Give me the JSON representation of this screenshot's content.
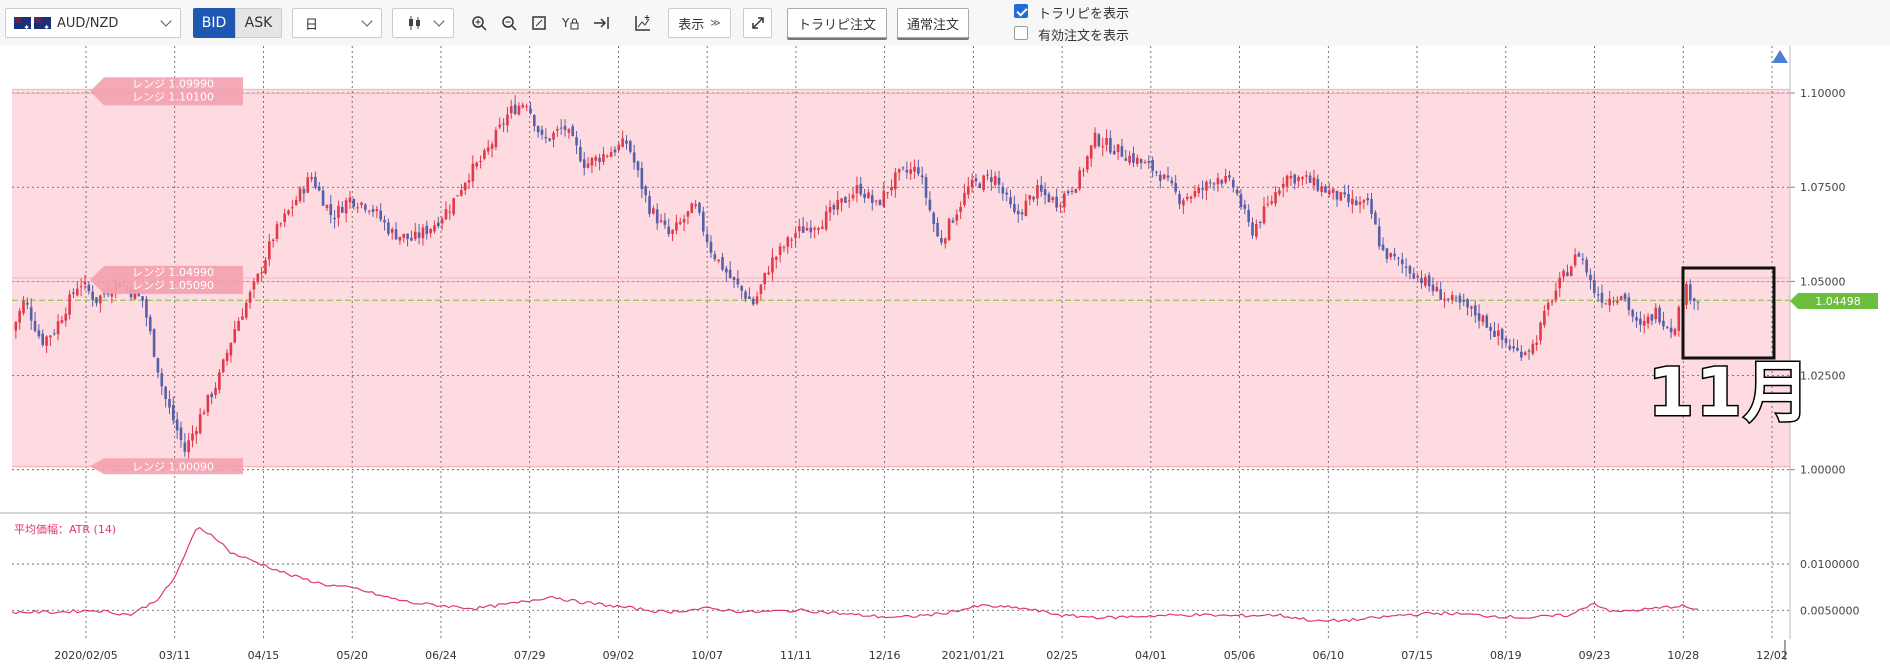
{
  "toolbar": {
    "symbol": "AUD/NZD",
    "bid_label": "BID",
    "ask_label": "ASK",
    "period": "日",
    "display_button": "表示",
    "tp_order_button": "トラリピ注文",
    "normal_order_button": "通常注文",
    "show_traripi_label": "トラリピを表示",
    "show_traripi_checked": true,
    "show_valid_orders_label": "有効注文を表示",
    "show_valid_orders_checked": false
  },
  "annotation": "11月",
  "colors": {
    "range_zone": "#fedbe1",
    "up_candle": "#e0394a",
    "down_candle": "#5560a8",
    "atr_line": "#e0357a",
    "price_badge": "#6cbf3c",
    "current_line": "#7cbf3c"
  },
  "chart_data": [
    {
      "type": "candlestick",
      "symbol": "AUD/NZD",
      "y_ticks": [
        "1.10000",
        "1.07500",
        "1.05000",
        "1.02500",
        "1.00000"
      ],
      "ylim": [
        0.9885,
        1.1125
      ],
      "x_ticks": [
        "2020/02/05",
        "03/11",
        "04/15",
        "05/20",
        "06/24",
        "07/29",
        "09/02",
        "10/07",
        "11/11",
        "12/16",
        "2021/01/21",
        "02/25",
        "04/01",
        "05/06",
        "06/10",
        "07/15",
        "08/19",
        "09/23",
        "10/28",
        "12/02"
      ],
      "current_price": "1.04498",
      "current_value": 1.04498,
      "range_zone": {
        "low": 1.0005,
        "high": 1.101
      },
      "range_labels": [
        {
          "text": "レンジ 1.09990",
          "value": 1.0999
        },
        {
          "text": "レンジ 1.10100",
          "value": 1.101
        },
        {
          "text": "レンジ 1.04990",
          "value": 1.0499
        },
        {
          "text": "レンジ 1.05090",
          "value": 1.0509
        },
        {
          "text": "レンジ 1.00090",
          "value": 1.0009
        }
      ],
      "close_keyframes": [
        [
          0,
          1.037
        ],
        [
          0.03,
          1.045
        ],
        [
          0.07,
          1.034
        ],
        [
          0.1,
          1.037
        ],
        [
          0.16,
          1.05
        ],
        [
          0.2,
          1.045
        ],
        [
          0.25,
          1.05
        ],
        [
          0.31,
          1.045
        ],
        [
          0.36,
          1.02
        ],
        [
          0.41,
          1.005
        ],
        [
          0.45,
          1.015
        ],
        [
          0.49,
          1.024
        ],
        [
          0.53,
          1.038
        ],
        [
          0.58,
          1.05
        ],
        [
          0.62,
          1.062
        ],
        [
          0.67,
          1.071
        ],
        [
          0.71,
          1.078
        ],
        [
          0.76,
          1.067
        ],
        [
          0.8,
          1.072
        ],
        [
          0.85,
          1.07
        ],
        [
          0.9,
          1.063
        ],
        [
          0.95,
          1.061
        ],
        [
          1.0,
          1.065
        ],
        [
          1.04,
          1.07
        ],
        [
          1.08,
          1.078
        ],
        [
          1.12,
          1.083
        ],
        [
          1.18,
          1.095
        ],
        [
          1.22,
          1.098
        ],
        [
          1.26,
          1.087
        ],
        [
          1.31,
          1.091
        ],
        [
          1.36,
          1.081
        ],
        [
          1.41,
          1.084
        ],
        [
          1.46,
          1.087
        ],
        [
          1.51,
          1.07
        ],
        [
          1.56,
          1.062
        ],
        [
          1.62,
          1.07
        ],
        [
          1.66,
          1.058
        ],
        [
          1.71,
          1.05
        ],
        [
          1.76,
          1.044
        ],
        [
          1.8,
          1.055
        ],
        [
          1.86,
          1.063
        ],
        [
          1.92,
          1.066
        ],
        [
          1.97,
          1.071
        ],
        [
          2.01,
          1.075
        ],
        [
          2.05,
          1.07
        ],
        [
          2.1,
          1.078
        ],
        [
          2.15,
          1.08
        ],
        [
          2.2,
          1.06
        ],
        [
          2.27,
          1.075
        ],
        [
          2.33,
          1.078
        ],
        [
          2.38,
          1.067
        ],
        [
          2.43,
          1.074
        ],
        [
          2.48,
          1.071
        ],
        [
          2.53,
          1.077
        ],
        [
          2.57,
          1.088
        ],
        [
          2.62,
          1.085
        ],
        [
          2.67,
          1.082
        ],
        [
          2.72,
          1.079
        ],
        [
          2.77,
          1.072
        ],
        [
          2.82,
          1.074
        ],
        [
          2.86,
          1.078
        ],
        [
          2.9,
          1.075
        ],
        [
          2.94,
          1.063
        ],
        [
          2.98,
          1.07
        ],
        [
          3.02,
          1.078
        ],
        [
          3.07,
          1.077
        ],
        [
          3.12,
          1.074
        ],
        [
          3.17,
          1.071
        ],
        [
          3.22,
          1.07
        ],
        [
          3.25,
          1.058
        ],
        [
          3.29,
          1.055
        ],
        [
          3.33,
          1.052
        ],
        [
          3.37,
          1.048
        ],
        [
          3.41,
          1.045
        ],
        [
          3.45,
          1.043
        ],
        [
          3.49,
          1.04
        ],
        [
          3.53,
          1.035
        ],
        [
          3.57,
          1.031
        ],
        [
          3.61,
          1.033
        ],
        [
          3.65,
          1.045
        ],
        [
          3.69,
          1.053
        ],
        [
          3.72,
          1.058
        ],
        [
          3.75,
          1.048
        ],
        [
          3.78,
          1.045
        ],
        [
          3.82,
          1.047
        ],
        [
          3.86,
          1.037
        ],
        [
          3.9,
          1.042
        ],
        [
          3.94,
          1.037
        ],
        [
          3.97,
          1.048
        ],
        [
          4.0,
          1.045
        ]
      ]
    },
    {
      "type": "line",
      "title": "平均価幅：ATR (14)",
      "series": [
        {
          "name": "ATR (14)",
          "values": [
            [
              0,
              0.0048
            ],
            [
              0.1,
              0.0048
            ],
            [
              0.2,
              0.005
            ],
            [
              0.28,
              0.0045
            ],
            [
              0.34,
              0.006
            ],
            [
              0.38,
              0.008
            ],
            [
              0.44,
              0.014
            ],
            [
              0.48,
              0.013
            ],
            [
              0.52,
              0.0112
            ],
            [
              0.58,
              0.0102
            ],
            [
              0.66,
              0.0088
            ],
            [
              0.74,
              0.0078
            ],
            [
              0.82,
              0.0073
            ],
            [
              0.88,
              0.0065
            ],
            [
              0.95,
              0.0058
            ],
            [
              1.02,
              0.0055
            ],
            [
              1.1,
              0.0052
            ],
            [
              1.2,
              0.0058
            ],
            [
              1.28,
              0.0065
            ],
            [
              1.33,
              0.006
            ],
            [
              1.42,
              0.0055
            ],
            [
              1.55,
              0.0048
            ],
            [
              1.65,
              0.0052
            ],
            [
              1.75,
              0.0048
            ],
            [
              1.88,
              0.005
            ],
            [
              2.0,
              0.0045
            ],
            [
              2.1,
              0.0042
            ],
            [
              2.2,
              0.0046
            ],
            [
              2.3,
              0.0055
            ],
            [
              2.4,
              0.0052
            ],
            [
              2.5,
              0.0044
            ],
            [
              2.6,
              0.0042
            ],
            [
              2.7,
              0.0044
            ],
            [
              2.8,
              0.0045
            ],
            [
              2.9,
              0.0044
            ],
            [
              3.0,
              0.0045
            ],
            [
              3.1,
              0.0038
            ],
            [
              3.2,
              0.004
            ],
            [
              3.3,
              0.0045
            ],
            [
              3.4,
              0.0047
            ],
            [
              3.5,
              0.0044
            ],
            [
              3.6,
              0.0042
            ],
            [
              3.7,
              0.0045
            ],
            [
              3.75,
              0.0058
            ],
            [
              3.8,
              0.0048
            ],
            [
              3.9,
              0.0052
            ],
            [
              3.96,
              0.0055
            ],
            [
              4.0,
              0.005
            ]
          ]
        }
      ],
      "y_ticks": [
        "0.0100000",
        "0.0050000"
      ],
      "ylim": [
        0.002,
        0.0152
      ]
    }
  ]
}
